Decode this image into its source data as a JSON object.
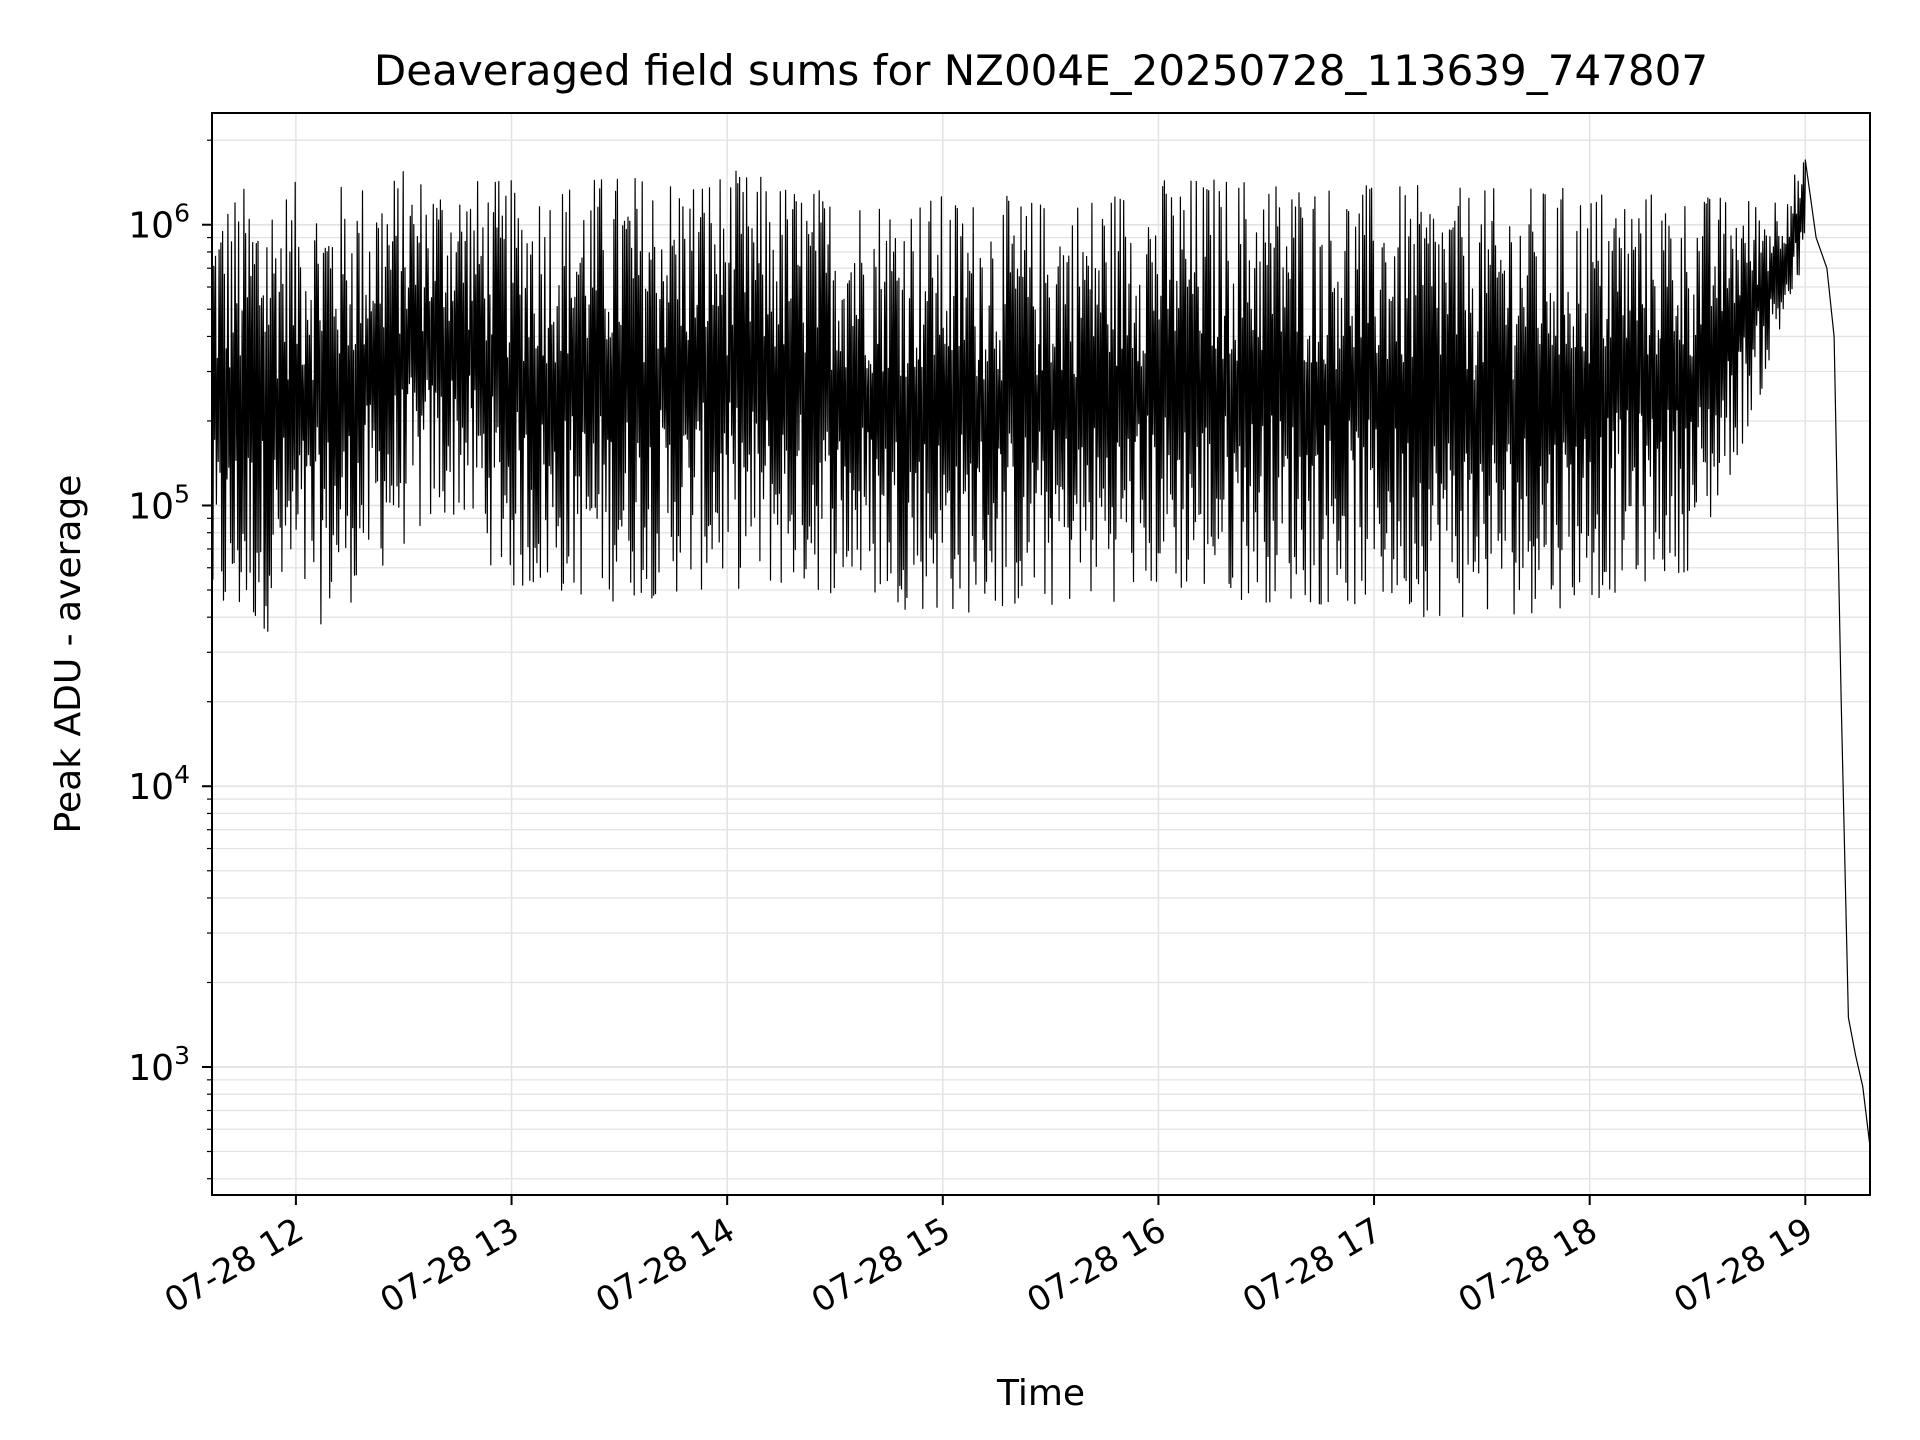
{
  "chart_data": {
    "type": "line",
    "title": "Deaveraged field sums for NZ004E_20250728_113639_747807",
    "xlabel": "Time",
    "ylabel": "Peak ADU - average",
    "yscale": "log",
    "ylim": [
      350,
      2500000
    ],
    "xlim": [
      "2025-07-28 11:36:39",
      "2025-07-28 19:18:00"
    ],
    "x_ticks": [
      {
        "value": "2025-07-28 12:00",
        "label": "07-28 12"
      },
      {
        "value": "2025-07-28 13:00",
        "label": "07-28 13"
      },
      {
        "value": "2025-07-28 14:00",
        "label": "07-28 14"
      },
      {
        "value": "2025-07-28 15:00",
        "label": "07-28 15"
      },
      {
        "value": "2025-07-28 16:00",
        "label": "07-28 16"
      },
      {
        "value": "2025-07-28 17:00",
        "label": "07-28 17"
      },
      {
        "value": "2025-07-28 18:00",
        "label": "07-28 18"
      },
      {
        "value": "2025-07-28 19:00",
        "label": "07-28 19"
      }
    ],
    "y_ticks": [
      {
        "value": 1000,
        "base": "10",
        "exp": "3"
      },
      {
        "value": 10000,
        "base": "10",
        "exp": "4"
      },
      {
        "value": 100000,
        "base": "10",
        "exp": "5"
      },
      {
        "value": 1000000,
        "base": "10",
        "exp": "6"
      }
    ],
    "grid": true,
    "line_color": "#000000",
    "grid_color": "#e3e3e3",
    "series": [
      {
        "envelope": [
          {
            "t": "2025-07-28 11:36:39",
            "low": 33000,
            "high": 1300000
          },
          {
            "t": "2025-07-28 11:50",
            "low": 35000,
            "high": 1450000
          },
          {
            "t": "2025-07-28 12:10",
            "low": 38000,
            "high": 1400000
          },
          {
            "t": "2025-07-28 12:30",
            "low": 70000,
            "high": 1600000
          },
          {
            "t": "2025-07-28 12:45",
            "low": 90000,
            "high": 1500000
          },
          {
            "t": "2025-07-28 13:00",
            "low": 48000,
            "high": 1450000
          },
          {
            "t": "2025-07-28 13:30",
            "low": 45000,
            "high": 1550000
          },
          {
            "t": "2025-07-28 14:00",
            "low": 50000,
            "high": 1600000
          },
          {
            "t": "2025-07-28 14:30",
            "low": 48000,
            "high": 1350000
          },
          {
            "t": "2025-07-28 15:00",
            "low": 40000,
            "high": 1300000
          },
          {
            "t": "2025-07-28 15:30",
            "low": 42000,
            "high": 1250000
          },
          {
            "t": "2025-07-28 16:00",
            "low": 48000,
            "high": 1500000
          },
          {
            "t": "2025-07-28 16:30",
            "low": 45000,
            "high": 1550000
          },
          {
            "t": "2025-07-28 17:00",
            "low": 42000,
            "high": 1400000
          },
          {
            "t": "2025-07-28 17:30",
            "low": 38000,
            "high": 1350000
          },
          {
            "t": "2025-07-28 18:00",
            "low": 45000,
            "high": 1400000
          },
          {
            "t": "2025-07-28 18:30",
            "low": 60000,
            "high": 1300000
          },
          {
            "t": "2025-07-28 18:50",
            "low": 300000,
            "high": 1250000
          },
          {
            "t": "2025-07-28 19:00",
            "low": 700000,
            "high": 1700000
          }
        ],
        "tail": [
          {
            "t": "2025-07-28 19:00",
            "y": 1700000
          },
          {
            "t": "2025-07-28 19:03",
            "y": 900000
          },
          {
            "t": "2025-07-28 19:06",
            "y": 700000
          },
          {
            "t": "2025-07-28 19:08",
            "y": 400000
          },
          {
            "t": "2025-07-28 19:10",
            "y": 20000
          },
          {
            "t": "2025-07-28 19:12",
            "y": 1500
          },
          {
            "t": "2025-07-28 19:14",
            "y": 1100
          },
          {
            "t": "2025-07-28 19:16",
            "y": 850
          },
          {
            "t": "2025-07-28 19:18",
            "y": 520
          }
        ]
      }
    ]
  }
}
